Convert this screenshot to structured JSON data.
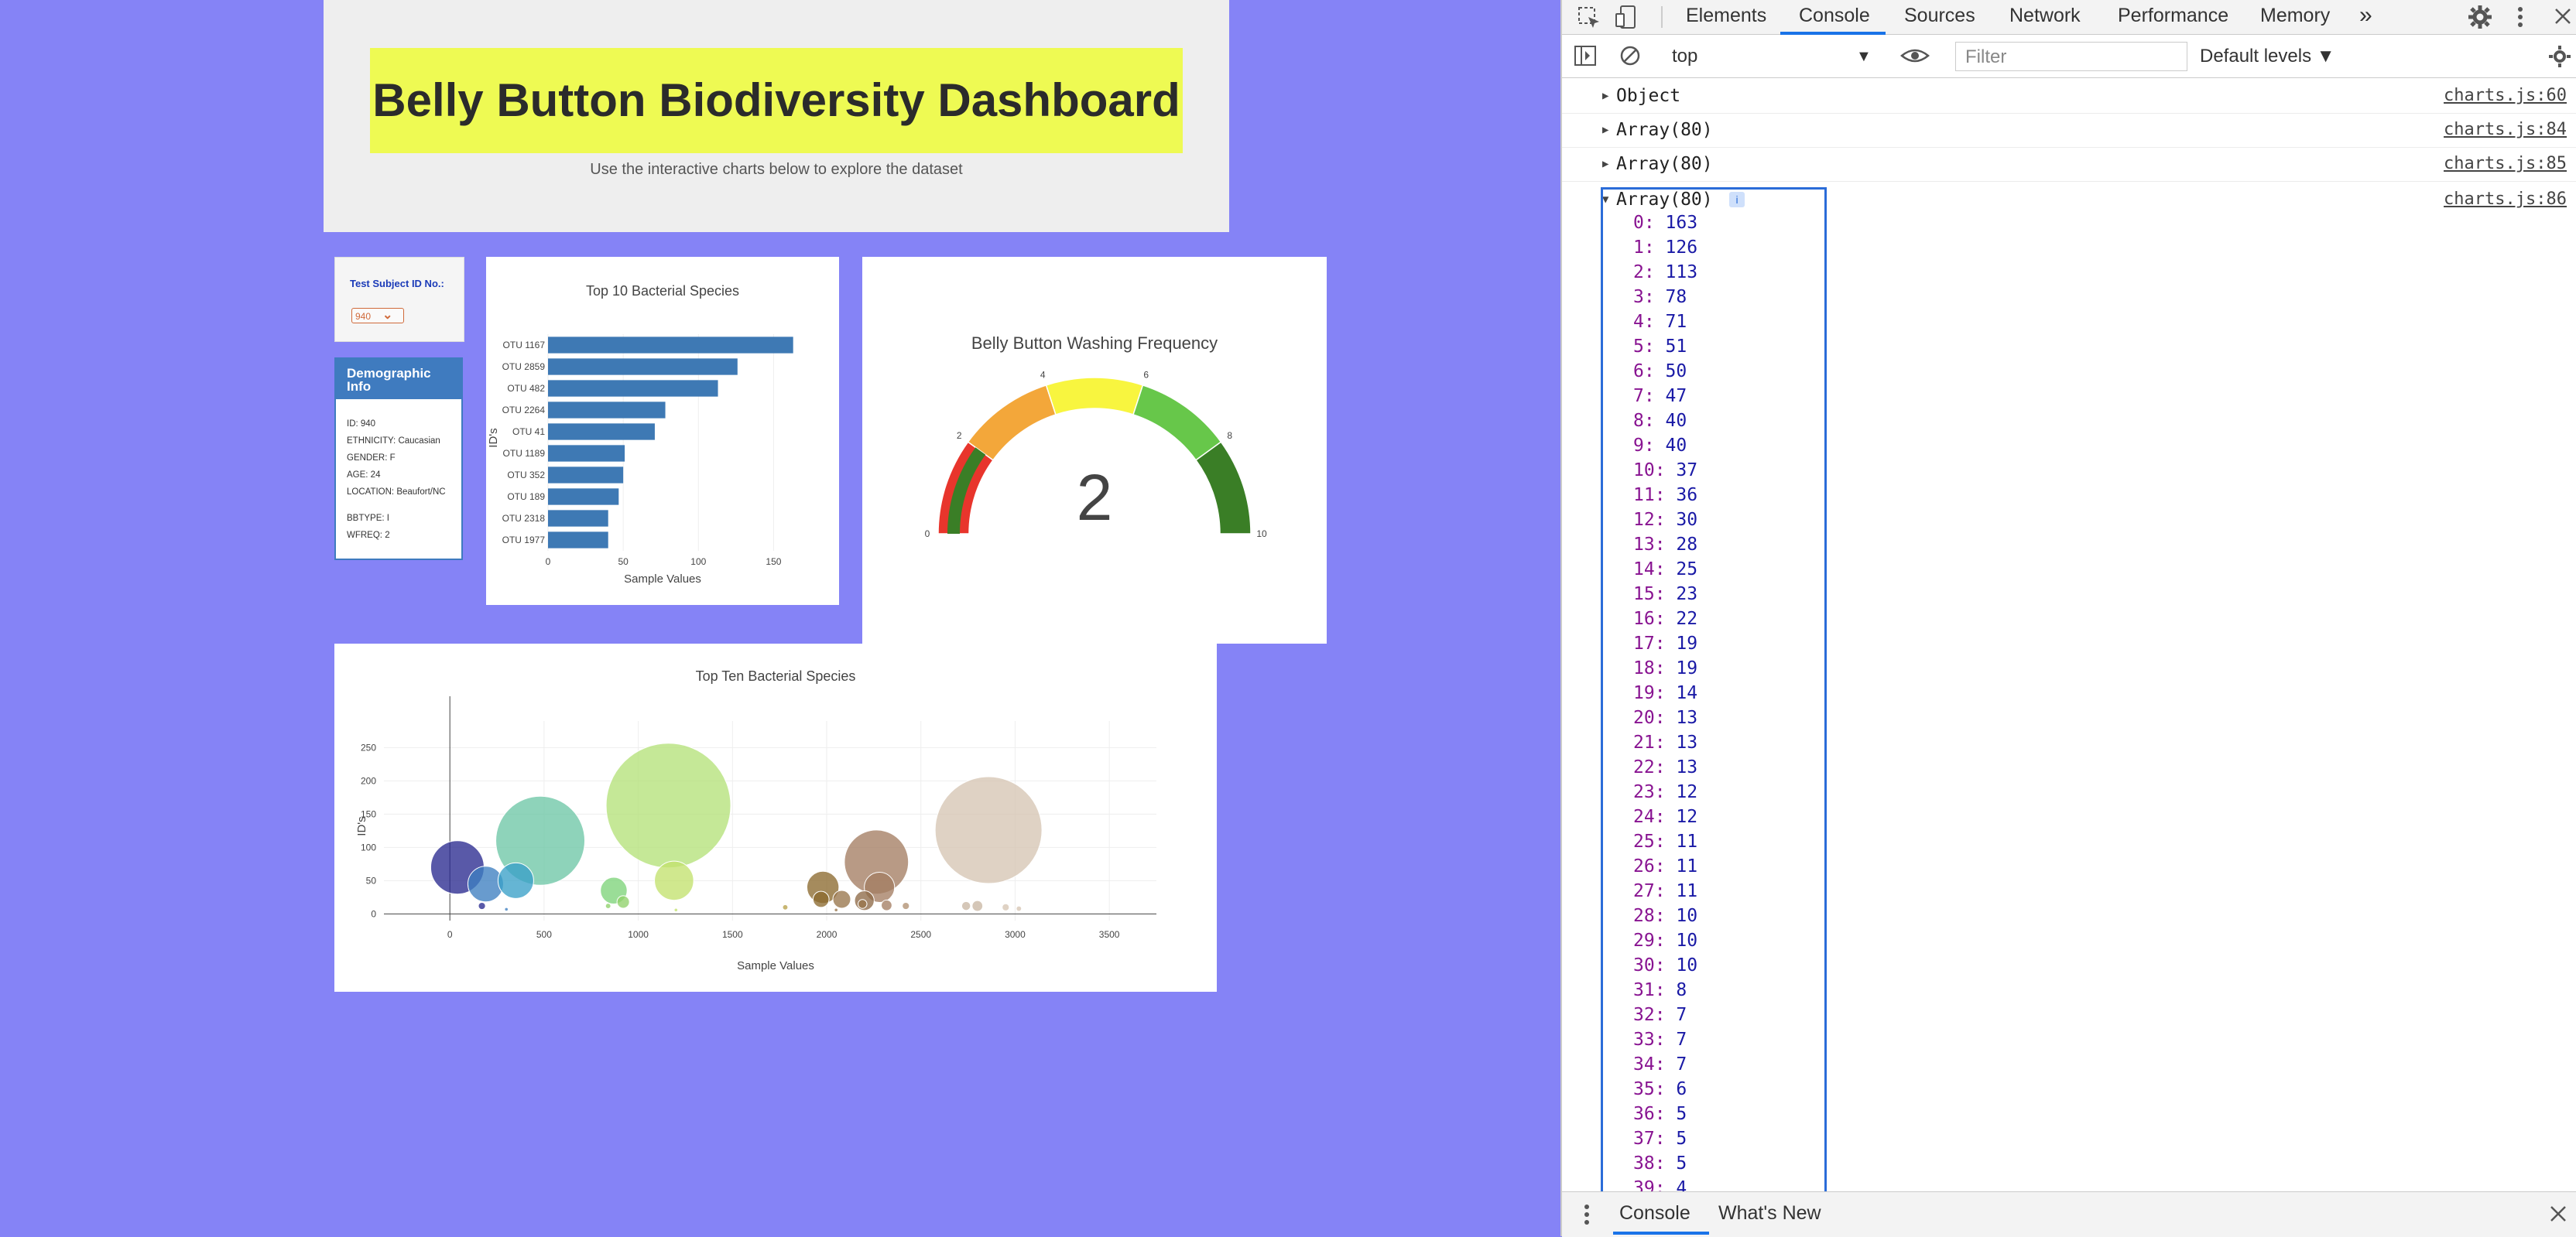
{
  "header": {
    "title": "Belly Button Biodiversity Dashboard",
    "subtitle": "Use the interactive charts below to explore the dataset"
  },
  "selector": {
    "label": "Test Subject ID No.:",
    "value": "940"
  },
  "demographic": {
    "heading": "Demographic Info",
    "lines": [
      "ID: 940",
      "ETHNICITY: Caucasian",
      "GENDER: F",
      "AGE: 24",
      "LOCATION: Beaufort/NC",
      "BBTYPE: I",
      "WFREQ: 2"
    ]
  },
  "chart_data": [
    {
      "type": "bar",
      "orientation": "horizontal",
      "title": "Top 10 Bacterial Species",
      "xlabel": "Sample Values",
      "ylabel": "ID's",
      "categories": [
        "OTU 1167",
        "OTU 2859",
        "OTU 482",
        "OTU 2264",
        "OTU 41",
        "OTU 1189",
        "OTU 352",
        "OTU 189",
        "OTU 2318",
        "OTU 1977"
      ],
      "values": [
        163,
        126,
        113,
        78,
        71,
        51,
        50,
        47,
        40,
        40
      ],
      "xlim": [
        0,
        175
      ],
      "xticks": [
        0,
        50,
        100,
        150
      ],
      "color": "#3e79b4"
    },
    {
      "type": "gauge",
      "title": "Belly Button Washing Frequency",
      "value": 2,
      "range": [
        0,
        10
      ],
      "ticks": [
        0,
        2,
        4,
        6,
        8,
        10
      ],
      "steps": [
        {
          "from": 0,
          "to": 2,
          "color": "#e8352c"
        },
        {
          "from": 2,
          "to": 4,
          "color": "#f3a73a"
        },
        {
          "from": 4,
          "to": 6,
          "color": "#f8f53f"
        },
        {
          "from": 6,
          "to": 8,
          "color": "#67c74a"
        },
        {
          "from": 8,
          "to": 10,
          "color": "#3a7e26"
        }
      ],
      "bar_color": "#3a7e26"
    },
    {
      "type": "scatter",
      "title": "Top Ten Bacterial Species",
      "xlabel": "Sample Values",
      "ylabel": "ID's",
      "xlim": [
        -350,
        3750
      ],
      "ylim": [
        -10,
        290
      ],
      "xticks": [
        0,
        500,
        1000,
        1500,
        2000,
        2500,
        3000,
        3500
      ],
      "yticks": [
        0,
        50,
        100,
        150,
        200,
        250
      ],
      "points": [
        {
          "x": 40,
          "y": 70,
          "size": 30,
          "color": "#2a2a8f"
        },
        {
          "x": 190,
          "y": 45,
          "size": 20,
          "color": "#3d7fc0"
        },
        {
          "x": 350,
          "y": 50,
          "size": 20,
          "color": "#3aa0c8"
        },
        {
          "x": 480,
          "y": 110,
          "size": 50,
          "color": "#6ec7a6"
        },
        {
          "x": 170,
          "y": 12,
          "size": 4,
          "color": "#2a2a8f"
        },
        {
          "x": 300,
          "y": 7,
          "size": 2,
          "color": "#3d7fc0"
        },
        {
          "x": 870,
          "y": 35,
          "size": 15,
          "color": "#7ed37a"
        },
        {
          "x": 920,
          "y": 18,
          "size": 7,
          "color": "#8fd16a"
        },
        {
          "x": 840,
          "y": 12,
          "size": 3,
          "color": "#8fd16a"
        },
        {
          "x": 1160,
          "y": 163,
          "size": 70,
          "color": "#b5e27a"
        },
        {
          "x": 1190,
          "y": 50,
          "size": 22,
          "color": "#c3e16e"
        },
        {
          "x": 1200,
          "y": 6,
          "size": 2,
          "color": "#c3e16e"
        },
        {
          "x": 1780,
          "y": 10,
          "size": 3,
          "color": "#b8a24a"
        },
        {
          "x": 1980,
          "y": 40,
          "size": 18,
          "color": "#8c6a2f"
        },
        {
          "x": 1970,
          "y": 22,
          "size": 9,
          "color": "#8c6a2f"
        },
        {
          "x": 2080,
          "y": 22,
          "size": 10,
          "color": "#99764c"
        },
        {
          "x": 2190,
          "y": 15,
          "size": 5,
          "color": "#99764c"
        },
        {
          "x": 2264,
          "y": 78,
          "size": 36,
          "color": "#a47e63"
        },
        {
          "x": 2280,
          "y": 40,
          "size": 17,
          "color": "#a47e63"
        },
        {
          "x": 2200,
          "y": 20,
          "size": 11,
          "color": "#8e6a48"
        },
        {
          "x": 2318,
          "y": 13,
          "size": 6,
          "color": "#a47e63"
        },
        {
          "x": 2050,
          "y": 6,
          "size": 2,
          "color": "#99764c"
        },
        {
          "x": 2420,
          "y": 12,
          "size": 4,
          "color": "#b19172"
        },
        {
          "x": 2859,
          "y": 126,
          "size": 60,
          "color": "#d6c5b3"
        },
        {
          "x": 2740,
          "y": 12,
          "size": 5,
          "color": "#c9b7a4"
        },
        {
          "x": 2800,
          "y": 12,
          "size": 6,
          "color": "#c9b7a4"
        },
        {
          "x": 2950,
          "y": 10,
          "size": 4,
          "color": "#d6c5b3"
        },
        {
          "x": 3020,
          "y": 8,
          "size": 3,
          "color": "#d6c5b3"
        }
      ]
    }
  ],
  "devtools": {
    "tabs": [
      "Elements",
      "Console",
      "Sources",
      "Network",
      "Performance",
      "Memory"
    ],
    "more": "»",
    "context": "top",
    "filter_placeholder": "Filter",
    "levels": "Default levels ▼",
    "messages": [
      {
        "text": "Object",
        "source": "charts.js:60"
      },
      {
        "text": "Array(80)",
        "source": "charts.js:84"
      },
      {
        "text": "Array(80)",
        "source": "charts.js:85"
      },
      {
        "text": "Array(80)",
        "source": "charts.js:86"
      }
    ],
    "info_badge": "i",
    "array_items": [
      163,
      126,
      113,
      78,
      71,
      51,
      50,
      47,
      40,
      40,
      37,
      36,
      30,
      28,
      25,
      23,
      22,
      19,
      19,
      14,
      13,
      13,
      13,
      12,
      12,
      11,
      11,
      11,
      10,
      10,
      10,
      8,
      7,
      7,
      7,
      6,
      5,
      5,
      5,
      4
    ],
    "drawer_tabs": [
      "Console",
      "What's New"
    ],
    "accent": "#1a73e8"
  }
}
